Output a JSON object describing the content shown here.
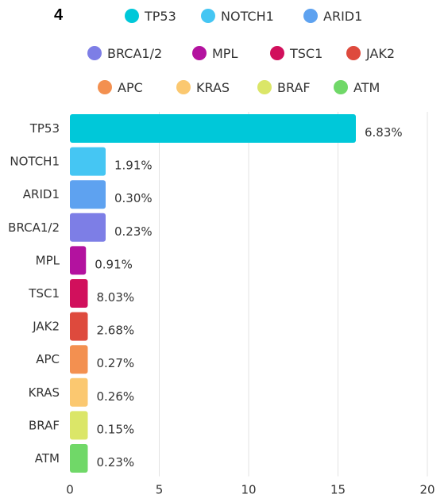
{
  "panel_label": "4",
  "chart_data": {
    "type": "bar",
    "orientation": "horizontal",
    "categories": [
      "TP53",
      "NOTCH1",
      "ARID1",
      "BRCA1/2",
      "MPL",
      "TSC1",
      "JAK2",
      "APC",
      "KRAS",
      "BRAF",
      "ATM"
    ],
    "values": [
      16,
      2,
      2,
      2,
      0.9,
      1,
      1,
      1,
      1,
      1,
      1
    ],
    "data_labels": [
      "6.83%",
      "1.91%",
      "0.30%",
      "0.23%",
      "0.91%",
      "8.03%",
      "2.68%",
      "0.27%",
      "0.26%",
      "0.15%",
      "0.23%"
    ],
    "colors": [
      "#00c8d9",
      "#45c6f3",
      "#5ea2f0",
      "#7d7ee6",
      "#b3129f",
      "#d1105c",
      "#de4a3d",
      "#f39050",
      "#fbc870",
      "#dbe668",
      "#70d868"
    ],
    "xlim": [
      0,
      20
    ],
    "xticks": [
      "0",
      "5",
      "10",
      "15",
      "20"
    ],
    "xlabel": "",
    "ylabel": "",
    "grid": true,
    "legend_position": "top",
    "legend": [
      "TP53",
      "NOTCH1",
      "ARID1",
      "BRCA1/2",
      "MPL",
      "TSC1",
      "JAK2",
      "APC",
      "KRAS",
      "BRAF",
      "ATM"
    ]
  }
}
